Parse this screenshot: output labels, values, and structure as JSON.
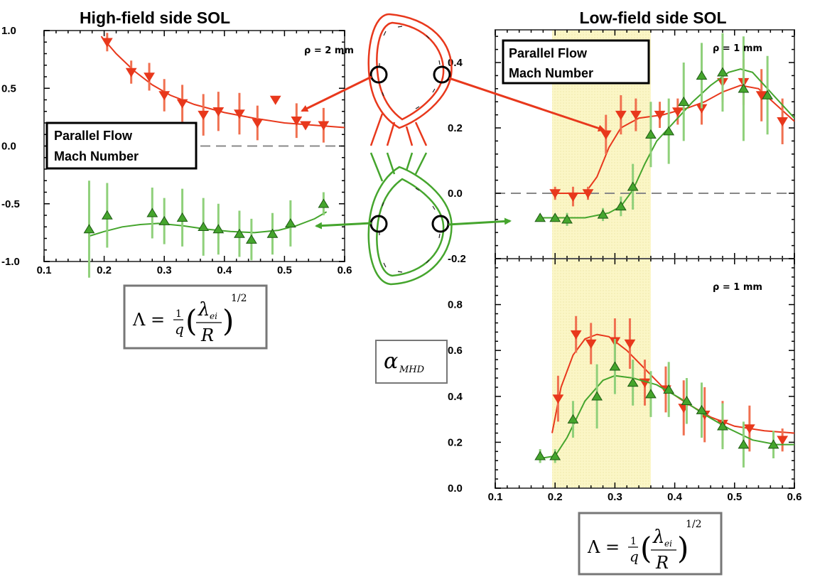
{
  "titles": {
    "hfs": "High-field side SOL",
    "lfs": "Low-field side SOL"
  },
  "labels": {
    "flow_line1": "Parallel Flow",
    "flow_line2": "Mach Number",
    "rho_hfs": "ρ = 2 mm",
    "rho_lfs_top": "ρ = 1 mm",
    "rho_lfs_bottom": "ρ = 1 mm",
    "alpha_symbol": "α",
    "alpha_sub": "MHD",
    "formula_lhs": "Λ =",
    "formula_one": "1",
    "formula_q": "q",
    "formula_lambda": "λ",
    "formula_lambda_sub": "ei",
    "formula_R": "R",
    "formula_exp": "1/2",
    "formula_lparen": "(",
    "formula_rparen": ")"
  },
  "colors": {
    "red": "#e8381c",
    "red_err": "#f07050",
    "green": "#45a52d",
    "green_err": "#8fd07a",
    "shade": "#fbf6c6",
    "axis": "#555555"
  },
  "chart_data": [
    {
      "id": "hfs",
      "type": "scatter",
      "title": "High-field side SOL",
      "annotation": "ρ = 2 mm",
      "xlim": [
        0.1,
        0.6
      ],
      "ylim": [
        -1.0,
        1.0
      ],
      "xticks": [
        "0.1",
        "0.2",
        "0.3",
        "0.4",
        "0.5",
        "0.6"
      ],
      "yticks": [
        "-1.0",
        "-0.5",
        "0.0",
        "0.5",
        "1.0"
      ],
      "ytick_values": [
        -1.0,
        -0.5,
        0.0,
        0.5,
        1.0
      ],
      "zero_line": true,
      "series": [
        {
          "color": "red",
          "marker": "triangle-down",
          "points": [
            {
              "x": 0.205,
              "y": 0.9,
              "err": 0.08
            },
            {
              "x": 0.245,
              "y": 0.64,
              "err": 0.1
            },
            {
              "x": 0.275,
              "y": 0.6,
              "err": 0.12
            },
            {
              "x": 0.3,
              "y": 0.44,
              "err": 0.14
            },
            {
              "x": 0.33,
              "y": 0.37,
              "err": 0.16
            },
            {
              "x": 0.365,
              "y": 0.27,
              "err": 0.18
            },
            {
              "x": 0.39,
              "y": 0.3,
              "err": 0.17
            },
            {
              "x": 0.425,
              "y": 0.28,
              "err": 0.18
            },
            {
              "x": 0.455,
              "y": 0.2,
              "err": 0.15
            },
            {
              "x": 0.485,
              "y": 0.4,
              "err": 0.0
            },
            {
              "x": 0.52,
              "y": 0.22,
              "err": 0.15
            },
            {
              "x": 0.535,
              "y": 0.18,
              "err": 0.0
            },
            {
              "x": 0.565,
              "y": 0.18,
              "err": 0.15
            }
          ],
          "fit": [
            [
              0.195,
              0.95
            ],
            [
              0.22,
              0.8
            ],
            [
              0.25,
              0.65
            ],
            [
              0.28,
              0.53
            ],
            [
              0.31,
              0.44
            ],
            [
              0.35,
              0.36
            ],
            [
              0.4,
              0.29
            ],
            [
              0.45,
              0.24
            ],
            [
              0.5,
              0.2
            ],
            [
              0.55,
              0.18
            ],
            [
              0.6,
              0.16
            ]
          ]
        },
        {
          "color": "green",
          "marker": "triangle-up",
          "points": [
            {
              "x": 0.175,
              "y": -0.72,
              "err": 0.42
            },
            {
              "x": 0.205,
              "y": -0.6,
              "err": 0.28
            },
            {
              "x": 0.28,
              "y": -0.58,
              "err": 0.22
            },
            {
              "x": 0.3,
              "y": -0.65,
              "err": 0.2
            },
            {
              "x": 0.33,
              "y": -0.62,
              "err": 0.25
            },
            {
              "x": 0.365,
              "y": -0.7,
              "err": 0.25
            },
            {
              "x": 0.39,
              "y": -0.72,
              "err": 0.22
            },
            {
              "x": 0.425,
              "y": -0.76,
              "err": 0.2
            },
            {
              "x": 0.445,
              "y": -0.81,
              "err": 0.18
            },
            {
              "x": 0.48,
              "y": -0.76,
              "err": 0.18
            },
            {
              "x": 0.51,
              "y": -0.67,
              "err": 0.2
            },
            {
              "x": 0.565,
              "y": -0.5,
              "err": 0.1
            }
          ],
          "fit": [
            [
              0.175,
              -0.78
            ],
            [
              0.2,
              -0.74
            ],
            [
              0.23,
              -0.7
            ],
            [
              0.26,
              -0.68
            ],
            [
              0.29,
              -0.67
            ],
            [
              0.33,
              -0.69
            ],
            [
              0.37,
              -0.72
            ],
            [
              0.41,
              -0.74
            ],
            [
              0.45,
              -0.75
            ],
            [
              0.49,
              -0.73
            ],
            [
              0.52,
              -0.69
            ],
            [
              0.55,
              -0.63
            ],
            [
              0.57,
              -0.57
            ]
          ]
        }
      ]
    },
    {
      "id": "lfs_top",
      "type": "scatter",
      "title": "Low-field side SOL",
      "annotation": "ρ = 1 mm",
      "xlim": [
        0.1,
        0.6
      ],
      "ylim": [
        -0.2,
        0.5
      ],
      "yticks": [
        "-0.2",
        "0.0",
        "0.2",
        "0.4"
      ],
      "ytick_values": [
        -0.2,
        0.0,
        0.2,
        0.4
      ],
      "shaded_x": [
        0.195,
        0.36
      ],
      "zero_line": true,
      "series": [
        {
          "color": "red",
          "marker": "triangle-down",
          "points": [
            {
              "x": 0.2,
              "y": 0.0,
              "err": 0.02
            },
            {
              "x": 0.23,
              "y": -0.01,
              "err": 0.03
            },
            {
              "x": 0.255,
              "y": 0.0,
              "err": 0.02
            },
            {
              "x": 0.285,
              "y": 0.18,
              "err": 0.06
            },
            {
              "x": 0.31,
              "y": 0.24,
              "err": 0.06
            },
            {
              "x": 0.335,
              "y": 0.24,
              "err": 0.05
            },
            {
              "x": 0.375,
              "y": 0.24,
              "err": 0.04
            },
            {
              "x": 0.405,
              "y": 0.25,
              "err": 0.04
            },
            {
              "x": 0.445,
              "y": 0.26,
              "err": 0.05
            },
            {
              "x": 0.48,
              "y": 0.34,
              "err": 0.06
            },
            {
              "x": 0.515,
              "y": 0.34,
              "err": 0.07
            },
            {
              "x": 0.545,
              "y": 0.3,
              "err": 0.08
            },
            {
              "x": 0.58,
              "y": 0.22,
              "err": 0.07
            }
          ],
          "fit": [
            [
              0.195,
              0.0
            ],
            [
              0.25,
              0.0
            ],
            [
              0.27,
              0.05
            ],
            [
              0.29,
              0.14
            ],
            [
              0.31,
              0.2
            ],
            [
              0.34,
              0.23
            ],
            [
              0.38,
              0.24
            ],
            [
              0.42,
              0.26
            ],
            [
              0.45,
              0.28
            ],
            [
              0.48,
              0.31
            ],
            [
              0.51,
              0.33
            ],
            [
              0.54,
              0.32
            ],
            [
              0.57,
              0.27
            ],
            [
              0.6,
              0.22
            ]
          ]
        },
        {
          "color": "green",
          "marker": "triangle-up",
          "points": [
            {
              "x": 0.175,
              "y": -0.075,
              "err": 0.0
            },
            {
              "x": 0.2,
              "y": -0.075,
              "err": 0.0
            },
            {
              "x": 0.22,
              "y": -0.08,
              "err": 0.02
            },
            {
              "x": 0.28,
              "y": -0.065,
              "err": 0.02
            },
            {
              "x": 0.31,
              "y": -0.04,
              "err": 0.03
            },
            {
              "x": 0.33,
              "y": 0.02,
              "err": 0.07
            },
            {
              "x": 0.36,
              "y": 0.18,
              "err": 0.1
            },
            {
              "x": 0.39,
              "y": 0.19,
              "err": 0.1
            },
            {
              "x": 0.415,
              "y": 0.28,
              "err": 0.12
            },
            {
              "x": 0.445,
              "y": 0.36,
              "err": 0.1
            },
            {
              "x": 0.48,
              "y": 0.37,
              "err": 0.12
            },
            {
              "x": 0.515,
              "y": 0.32,
              "err": 0.16
            },
            {
              "x": 0.555,
              "y": 0.3,
              "err": 0.12
            }
          ],
          "fit": [
            [
              0.175,
              -0.075
            ],
            [
              0.25,
              -0.075
            ],
            [
              0.29,
              -0.06
            ],
            [
              0.31,
              -0.04
            ],
            [
              0.33,
              0.01
            ],
            [
              0.35,
              0.09
            ],
            [
              0.37,
              0.16
            ],
            [
              0.4,
              0.22
            ],
            [
              0.43,
              0.28
            ],
            [
              0.46,
              0.33
            ],
            [
              0.49,
              0.37
            ],
            [
              0.51,
              0.38
            ],
            [
              0.53,
              0.37
            ],
            [
              0.56,
              0.31
            ],
            [
              0.6,
              0.23
            ]
          ]
        }
      ]
    },
    {
      "id": "lfs_bottom",
      "type": "scatter",
      "annotation": "ρ = 1 mm",
      "ylabel": "α MHD",
      "xlim": [
        0.1,
        0.6
      ],
      "ylim": [
        0.0,
        1.0
      ],
      "xticks": [
        "0.1",
        "0.2",
        "0.3",
        "0.4",
        "0.5",
        "0.6"
      ],
      "yticks": [
        "0.0",
        "0.2",
        "0.4",
        "0.6",
        "0.8"
      ],
      "ytick_values": [
        0.0,
        0.2,
        0.4,
        0.6,
        0.8
      ],
      "shaded_x": [
        0.195,
        0.36
      ],
      "series": [
        {
          "color": "red",
          "marker": "triangle-down",
          "points": [
            {
              "x": 0.205,
              "y": 0.39,
              "err": 0.1
            },
            {
              "x": 0.235,
              "y": 0.67,
              "err": 0.08
            },
            {
              "x": 0.26,
              "y": 0.63,
              "err": 0.09
            },
            {
              "x": 0.3,
              "y": 0.64,
              "err": 0.1
            },
            {
              "x": 0.325,
              "y": 0.63,
              "err": 0.11
            },
            {
              "x": 0.35,
              "y": 0.46,
              "err": 0.1
            },
            {
              "x": 0.385,
              "y": 0.43,
              "err": 0.1
            },
            {
              "x": 0.415,
              "y": 0.35,
              "err": 0.12
            },
            {
              "x": 0.45,
              "y": 0.32,
              "err": 0.12
            },
            {
              "x": 0.48,
              "y": 0.28,
              "err": 0.1
            },
            {
              "x": 0.525,
              "y": 0.26,
              "err": 0.1
            },
            {
              "x": 0.58,
              "y": 0.21,
              "err": 0.05
            }
          ],
          "fit": [
            [
              0.195,
              0.24
            ],
            [
              0.21,
              0.44
            ],
            [
              0.23,
              0.58
            ],
            [
              0.25,
              0.65
            ],
            [
              0.27,
              0.67
            ],
            [
              0.29,
              0.66
            ],
            [
              0.32,
              0.6
            ],
            [
              0.35,
              0.52
            ],
            [
              0.38,
              0.44
            ],
            [
              0.42,
              0.37
            ],
            [
              0.46,
              0.31
            ],
            [
              0.5,
              0.27
            ],
            [
              0.55,
              0.25
            ],
            [
              0.6,
              0.24
            ]
          ]
        },
        {
          "color": "green",
          "marker": "triangle-up",
          "points": [
            {
              "x": 0.175,
              "y": 0.14,
              "err": 0.03
            },
            {
              "x": 0.2,
              "y": 0.14,
              "err": 0.03
            },
            {
              "x": 0.23,
              "y": 0.3,
              "err": 0.08
            },
            {
              "x": 0.27,
              "y": 0.4,
              "err": 0.14
            },
            {
              "x": 0.3,
              "y": 0.53,
              "err": 0.12
            },
            {
              "x": 0.33,
              "y": 0.46,
              "err": 0.1
            },
            {
              "x": 0.36,
              "y": 0.41,
              "err": 0.1
            },
            {
              "x": 0.39,
              "y": 0.43,
              "err": 0.12
            },
            {
              "x": 0.42,
              "y": 0.38,
              "err": 0.1
            },
            {
              "x": 0.445,
              "y": 0.34,
              "err": 0.12
            },
            {
              "x": 0.48,
              "y": 0.27,
              "err": 0.1
            },
            {
              "x": 0.515,
              "y": 0.19,
              "err": 0.1
            },
            {
              "x": 0.565,
              "y": 0.19,
              "err": 0.06
            }
          ],
          "fit": [
            [
              0.175,
              0.13
            ],
            [
              0.2,
              0.14
            ],
            [
              0.22,
              0.22
            ],
            [
              0.25,
              0.38
            ],
            [
              0.28,
              0.47
            ],
            [
              0.3,
              0.49
            ],
            [
              0.33,
              0.48
            ],
            [
              0.37,
              0.45
            ],
            [
              0.41,
              0.39
            ],
            [
              0.45,
              0.32
            ],
            [
              0.49,
              0.26
            ],
            [
              0.53,
              0.21
            ],
            [
              0.57,
              0.19
            ],
            [
              0.6,
              0.19
            ]
          ]
        }
      ]
    }
  ]
}
